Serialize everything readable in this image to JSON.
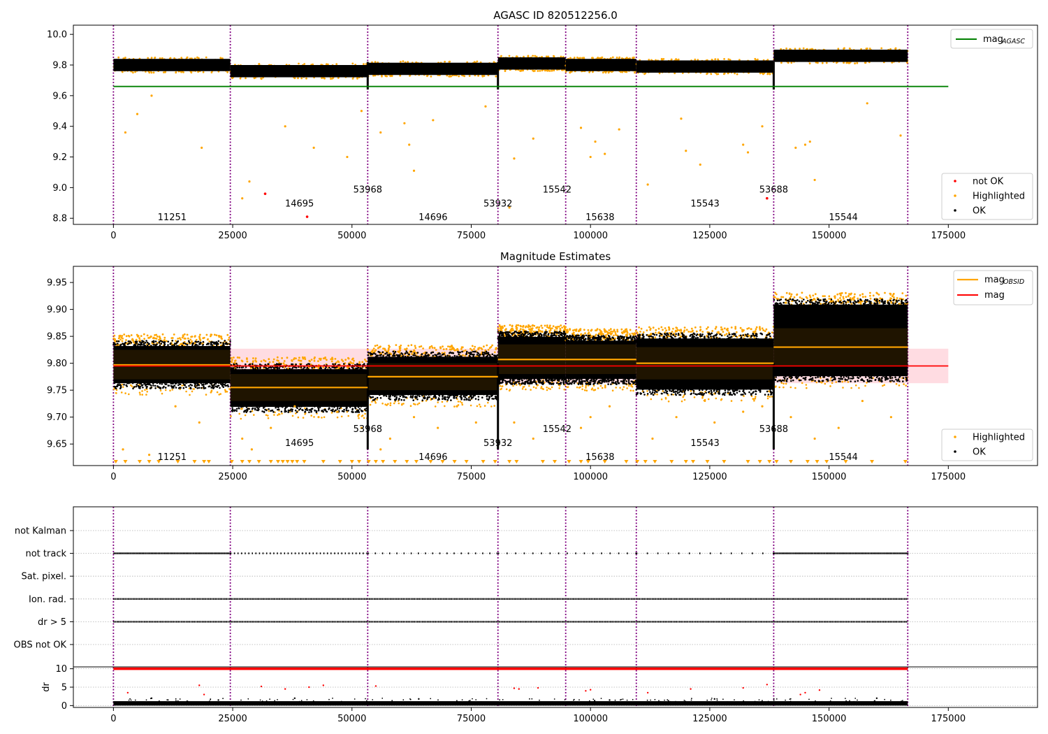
{
  "figure": {
    "title_top": "AGASC ID 820512256.0",
    "title_mid": "Magnitude Estimates"
  },
  "chart_data": [
    {
      "type": "scatter",
      "title": "AGASC ID 820512256.0",
      "xlim": [
        -8400,
        193700
      ],
      "ylim": [
        8.76,
        10.06
      ],
      "x_ticks": [
        0,
        25000,
        50000,
        75000,
        100000,
        125000,
        150000,
        175000
      ],
      "y_ticks": [
        8.8,
        9.0,
        9.2,
        9.4,
        9.6,
        9.8,
        10.0
      ],
      "obs_boundaries": [
        0,
        24500,
        53300,
        80600,
        94800,
        109600,
        138400,
        166500
      ],
      "obsid_labels": [
        {
          "text": "11251",
          "x": 12300,
          "y": 8.81
        },
        {
          "text": "14695",
          "x": 39000,
          "y": 8.9
        },
        {
          "text": "53968",
          "x": 53300,
          "y": 8.99
        },
        {
          "text": "14696",
          "x": 67000,
          "y": 8.81
        },
        {
          "text": "53932",
          "x": 80600,
          "y": 8.9
        },
        {
          "text": "15542",
          "x": 93000,
          "y": 8.99
        },
        {
          "text": "15638",
          "x": 102000,
          "y": 8.81
        },
        {
          "text": "15543",
          "x": 124000,
          "y": 8.9
        },
        {
          "text": "53688",
          "x": 138400,
          "y": 8.99
        },
        {
          "text": "15544",
          "x": 153000,
          "y": 8.81
        }
      ],
      "reference_line": {
        "name": "mag_AGASC",
        "y": 9.66,
        "x_range": [
          0,
          175000
        ],
        "color": "#008000"
      },
      "bands": [
        {
          "x": [
            0,
            24500
          ],
          "level": 9.8
        },
        {
          "x": [
            24500,
            53300
          ],
          "level": 9.76
        },
        {
          "x": [
            53300,
            80600
          ],
          "level": 9.775
        },
        {
          "x": [
            80600,
            94800
          ],
          "level": 9.81
        },
        {
          "x": [
            94800,
            109600
          ],
          "level": 9.8
        },
        {
          "x": [
            109600,
            138400
          ],
          "level": 9.79
        },
        {
          "x": [
            138400,
            166500
          ],
          "level": 9.86
        }
      ],
      "not_ok_points": [
        [
          31800,
          8.96
        ],
        [
          40600,
          8.81
        ],
        [
          137000,
          8.93
        ]
      ],
      "highlighted_points": [
        [
          2500,
          9.36
        ],
        [
          5000,
          9.48
        ],
        [
          8000,
          9.6
        ],
        [
          18500,
          9.26
        ],
        [
          27000,
          8.93
        ],
        [
          28500,
          9.04
        ],
        [
          36000,
          9.4
        ],
        [
          42000,
          9.26
        ],
        [
          49000,
          9.2
        ],
        [
          52000,
          9.5
        ],
        [
          56000,
          9.36
        ],
        [
          61000,
          9.42
        ],
        [
          62000,
          9.28
        ],
        [
          63000,
          9.11
        ],
        [
          67000,
          9.44
        ],
        [
          78000,
          9.53
        ],
        [
          83000,
          8.87
        ],
        [
          84000,
          9.19
        ],
        [
          88000,
          9.32
        ],
        [
          98000,
          9.39
        ],
        [
          100000,
          9.2
        ],
        [
          101000,
          9.3
        ],
        [
          103000,
          9.22
        ],
        [
          106000,
          9.38
        ],
        [
          112000,
          9.02
        ],
        [
          119000,
          9.45
        ],
        [
          120000,
          9.24
        ],
        [
          123000,
          9.15
        ],
        [
          132000,
          9.28
        ],
        [
          133000,
          9.23
        ],
        [
          136000,
          9.4
        ],
        [
          143000,
          9.26
        ],
        [
          145000,
          9.28
        ],
        [
          146000,
          9.3
        ],
        [
          147000,
          9.05
        ],
        [
          158000,
          9.55
        ],
        [
          165000,
          9.34
        ]
      ],
      "legend": [
        {
          "label": "mag",
          "sub": "AGASC",
          "color": "#008000"
        },
        {
          "label": "not OK",
          "color": "#ff0000"
        },
        {
          "label": "Highlighted",
          "color": "#ffa500"
        },
        {
          "label": "OK",
          "color": "#000000"
        }
      ]
    },
    {
      "type": "scatter",
      "title": "Magnitude Estimates",
      "xlim": [
        -8400,
        193700
      ],
      "ylim": [
        9.61,
        9.98
      ],
      "x_ticks": [
        0,
        25000,
        50000,
        75000,
        100000,
        125000,
        150000,
        175000
      ],
      "y_ticks": [
        9.65,
        9.7,
        9.75,
        9.8,
        9.85,
        9.9,
        9.95
      ],
      "obs_boundaries": [
        0,
        24500,
        53300,
        80600,
        94800,
        109600,
        138400,
        166500
      ],
      "obsid_labels": [
        {
          "text": "11251",
          "x": 12300,
          "y": 9.627
        },
        {
          "text": "14695",
          "x": 39000,
          "y": 9.653
        },
        {
          "text": "53968",
          "x": 53300,
          "y": 9.679
        },
        {
          "text": "14696",
          "x": 67000,
          "y": 9.627
        },
        {
          "text": "53932",
          "x": 80600,
          "y": 9.653
        },
        {
          "text": "15542",
          "x": 93000,
          "y": 9.679
        },
        {
          "text": "15638",
          "x": 102000,
          "y": 9.627
        },
        {
          "text": "15543",
          "x": 124000,
          "y": 9.653
        },
        {
          "text": "53688",
          "x": 138400,
          "y": 9.679
        },
        {
          "text": "15544",
          "x": 153000,
          "y": 9.627
        }
      ],
      "mean_mag": {
        "y": 9.795,
        "band": [
          9.763,
          9.827
        ],
        "x_range": [
          0,
          175000
        ],
        "color": "#ff0000"
      },
      "obsid_mags": [
        {
          "x": [
            0,
            24500
          ],
          "y": 9.797,
          "band": [
            9.77,
            9.825
          ]
        },
        {
          "x": [
            24500,
            53300
          ],
          "y": 9.755,
          "band": [
            9.73,
            9.78
          ]
        },
        {
          "x": [
            53300,
            80600
          ],
          "y": 9.775,
          "band": [
            9.75,
            9.8
          ]
        },
        {
          "x": [
            80600,
            94800
          ],
          "y": 9.807,
          "band": [
            9.78,
            9.835
          ]
        },
        {
          "x": [
            94800,
            109600
          ],
          "y": 9.807,
          "band": [
            9.78,
            9.835
          ]
        },
        {
          "x": [
            109600,
            138400
          ],
          "y": 9.8,
          "band": [
            9.77,
            9.83
          ]
        },
        {
          "x": [
            138400,
            166500
          ],
          "y": 9.83,
          "band": [
            9.795,
            9.865
          ]
        }
      ],
      "ok_ranges": [
        {
          "x": [
            0,
            24500
          ],
          "y": [
            9.757,
            9.838
          ]
        },
        {
          "x": [
            24500,
            53300
          ],
          "y": [
            9.713,
            9.795
          ]
        },
        {
          "x": [
            53300,
            80600
          ],
          "y": [
            9.735,
            9.818
          ]
        },
        {
          "x": [
            80600,
            94800
          ],
          "y": [
            9.765,
            9.855
          ]
        },
        {
          "x": [
            94800,
            109600
          ],
          "y": [
            9.765,
            9.848
          ]
        },
        {
          "x": [
            109600,
            138400
          ],
          "y": [
            9.745,
            9.852
          ]
        },
        {
          "x": [
            138400,
            166500
          ],
          "y": [
            9.77,
            9.915
          ]
        }
      ],
      "highlighted_points": [
        [
          2000,
          9.64
        ],
        [
          7500,
          9.63
        ],
        [
          13000,
          9.72
        ],
        [
          18000,
          9.69
        ],
        [
          27000,
          9.66
        ],
        [
          29000,
          9.64
        ],
        [
          33000,
          9.68
        ],
        [
          38000,
          9.72
        ],
        [
          43000,
          9.7
        ],
        [
          47000,
          9.71
        ],
        [
          52000,
          9.68
        ],
        [
          56000,
          9.64
        ],
        [
          58000,
          9.66
        ],
        [
          63000,
          9.7
        ],
        [
          68000,
          9.68
        ],
        [
          72000,
          9.72
        ],
        [
          76000,
          9.69
        ],
        [
          84000,
          9.69
        ],
        [
          88000,
          9.66
        ],
        [
          98000,
          9.68
        ],
        [
          100000,
          9.7
        ],
        [
          104000,
          9.72
        ],
        [
          113000,
          9.66
        ],
        [
          118000,
          9.7
        ],
        [
          126000,
          9.69
        ],
        [
          132000,
          9.71
        ],
        [
          136000,
          9.72
        ],
        [
          142000,
          9.7
        ],
        [
          147000,
          9.66
        ],
        [
          152000,
          9.68
        ],
        [
          157000,
          9.73
        ],
        [
          163000,
          9.7
        ]
      ],
      "floor_markers": [
        500,
        2500,
        5500,
        7500,
        9500,
        13500,
        17000,
        19000,
        20000,
        24800,
        27000,
        28500,
        30500,
        33000,
        34500,
        35500,
        36500,
        37500,
        38500,
        40000,
        44000,
        47500,
        50000,
        51500,
        53500,
        55000,
        56500,
        59000,
        61500,
        63500,
        66500,
        69000,
        71500,
        74000,
        77500,
        80000,
        83000,
        84500,
        90000,
        92500,
        95500,
        98000,
        99500,
        103000,
        107500,
        109800,
        111500,
        113500,
        117000,
        120000,
        121500,
        124500,
        128000,
        133000,
        135500,
        137500,
        139000,
        142000,
        145500,
        147500,
        149500,
        153500,
        159000,
        166000
      ],
      "legend": [
        {
          "label": "mag",
          "sub": "OBSID",
          "color": "#ffa500"
        },
        {
          "label": "mag",
          "color": "#ff0000"
        },
        {
          "label": "Highlighted",
          "color": "#ffa500"
        },
        {
          "label": "OK",
          "color": "#000000"
        }
      ]
    },
    {
      "type": "scatter",
      "title": "",
      "xlim": [
        -8400,
        193700
      ],
      "categories": [
        "not Kalman",
        "not track",
        "Sat. pixel.",
        "Ion. rad.",
        "dr > 5",
        "OBS not OK"
      ],
      "obs_boundaries": [
        0,
        24500,
        53300,
        80600,
        94800,
        109600,
        138400,
        166500
      ],
      "flag_rows": [
        {
          "name": "not track",
          "density": "sparse"
        },
        {
          "name": "Ion. rad.",
          "density": "dense"
        },
        {
          "name": "dr > 5",
          "density": "dense"
        }
      ]
    },
    {
      "type": "scatter",
      "title": "",
      "ylabel": "dr",
      "xlim": [
        -8400,
        193700
      ],
      "ylim": [
        -0.5,
        10.5
      ],
      "x_ticks": [
        0,
        25000,
        50000,
        75000,
        100000,
        125000,
        150000,
        175000
      ],
      "y_ticks": [
        0,
        5,
        10
      ],
      "obs_boundaries": [
        0,
        24500,
        53300,
        80600,
        94800,
        109600,
        138400,
        166500
      ],
      "clipped_value": 10,
      "outliers_red": [
        [
          3000,
          3.5
        ],
        [
          18000,
          5.5
        ],
        [
          19000,
          3.0
        ],
        [
          31000,
          5.2
        ],
        [
          36000,
          4.5
        ],
        [
          41000,
          5.0
        ],
        [
          44000,
          5.5
        ],
        [
          55000,
          5.3
        ],
        [
          84000,
          4.7
        ],
        [
          85000,
          4.5
        ],
        [
          89000,
          4.8
        ],
        [
          99000,
          4.0
        ],
        [
          100000,
          4.3
        ],
        [
          112000,
          3.5
        ],
        [
          121000,
          4.5
        ],
        [
          132000,
          4.8
        ],
        [
          137000,
          5.7
        ],
        [
          144000,
          3.0
        ],
        [
          145000,
          3.5
        ],
        [
          148000,
          4.2
        ]
      ],
      "outliers_black": [
        [
          8000,
          2.0
        ],
        [
          22000,
          1.5
        ],
        [
          38000,
          2.0
        ],
        [
          64000,
          1.8
        ],
        [
          104000,
          1.5
        ],
        [
          126000,
          1.8
        ],
        [
          160000,
          2.0
        ]
      ]
    }
  ]
}
